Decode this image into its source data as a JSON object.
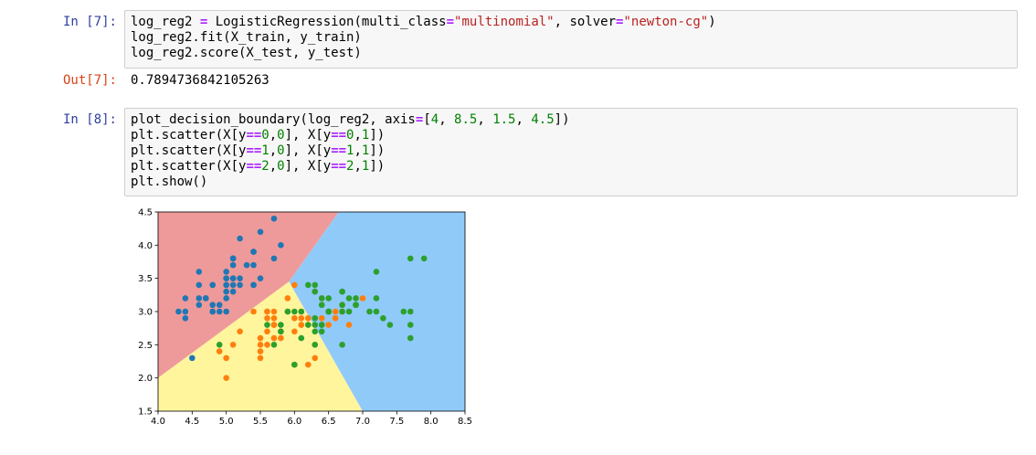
{
  "cells": [
    {
      "prompt": "In [7]:",
      "lines": [
        [
          {
            "t": "log_reg2 "
          },
          {
            "t": "=",
            "c": "op"
          },
          {
            "t": " LogisticRegression(multi_class"
          },
          {
            "t": "=",
            "c": "op"
          },
          {
            "t": "\"multinomial\"",
            "c": "str"
          },
          {
            "t": ", solver"
          },
          {
            "t": "=",
            "c": "op"
          },
          {
            "t": "\"newton-cg\"",
            "c": "str"
          },
          {
            "t": ")"
          }
        ],
        [
          {
            "t": "log_reg2.fit(X_train, y_train)"
          }
        ],
        [
          {
            "t": "log_reg2.score(X_test, y_test)"
          }
        ]
      ]
    },
    {
      "prompt": "In [8]:",
      "lines": [
        [
          {
            "t": "plot_decision_boundary(log_reg2, axis"
          },
          {
            "t": "=",
            "c": "op"
          },
          {
            "t": "["
          },
          {
            "t": "4",
            "c": "num"
          },
          {
            "t": ", "
          },
          {
            "t": "8.5",
            "c": "num"
          },
          {
            "t": ", "
          },
          {
            "t": "1.5",
            "c": "num"
          },
          {
            "t": ", "
          },
          {
            "t": "4.5",
            "c": "num"
          },
          {
            "t": "])"
          }
        ],
        [
          {
            "t": "plt.scatter(X[y"
          },
          {
            "t": "==",
            "c": "op"
          },
          {
            "t": "0",
            "c": "num"
          },
          {
            "t": ","
          },
          {
            "t": "0",
            "c": "num"
          },
          {
            "t": "], X[y"
          },
          {
            "t": "==",
            "c": "op"
          },
          {
            "t": "0",
            "c": "num"
          },
          {
            "t": ","
          },
          {
            "t": "1",
            "c": "num"
          },
          {
            "t": "])"
          }
        ],
        [
          {
            "t": "plt.scatter(X[y"
          },
          {
            "t": "==",
            "c": "op"
          },
          {
            "t": "1",
            "c": "num"
          },
          {
            "t": ","
          },
          {
            "t": "0",
            "c": "num"
          },
          {
            "t": "], X[y"
          },
          {
            "t": "==",
            "c": "op"
          },
          {
            "t": "1",
            "c": "num"
          },
          {
            "t": ","
          },
          {
            "t": "1",
            "c": "num"
          },
          {
            "t": "])"
          }
        ],
        [
          {
            "t": "plt.scatter(X[y"
          },
          {
            "t": "==",
            "c": "op"
          },
          {
            "t": "2",
            "c": "num"
          },
          {
            "t": ","
          },
          {
            "t": "0",
            "c": "num"
          },
          {
            "t": "], X[y"
          },
          {
            "t": "==",
            "c": "op"
          },
          {
            "t": "2",
            "c": "num"
          },
          {
            "t": ","
          },
          {
            "t": "1",
            "c": "num"
          },
          {
            "t": "])"
          }
        ],
        [
          {
            "t": "plt.show()"
          }
        ]
      ]
    }
  ],
  "output": {
    "prompt": "Out[7]:",
    "value": "0.7894736842105263"
  },
  "colors": {
    "in_prompt": "#303f9f",
    "out_prompt": "#d84315",
    "region_0": "#ef9a9a",
    "region_1": "#fff59d",
    "region_2": "#90caf9",
    "class_0": "#1f77b4",
    "class_1": "#ff7f0e",
    "class_2": "#2ca02c"
  },
  "chart_data": {
    "type": "scatter",
    "xlim": [
      4.0,
      8.5
    ],
    "ylim": [
      1.5,
      4.5
    ],
    "xticks": [
      "4.0",
      "4.5",
      "5.0",
      "5.5",
      "6.0",
      "6.5",
      "7.0",
      "7.5",
      "8.0",
      "8.5"
    ],
    "yticks": [
      "1.5",
      "2.0",
      "2.5",
      "3.0",
      "3.5",
      "4.0",
      "4.5"
    ],
    "regions": [
      {
        "class": 0,
        "polygon": [
          [
            4.0,
            2.0
          ],
          [
            5.92,
            3.45
          ],
          [
            6.65,
            4.5
          ],
          [
            4.0,
            4.5
          ]
        ]
      },
      {
        "class": 1,
        "polygon": [
          [
            4.0,
            1.5
          ],
          [
            7.0,
            1.5
          ],
          [
            5.92,
            3.45
          ],
          [
            4.0,
            2.0
          ]
        ]
      },
      {
        "class": 2,
        "polygon": [
          [
            7.0,
            1.5
          ],
          [
            8.5,
            1.5
          ],
          [
            8.5,
            4.5
          ],
          [
            6.65,
            4.5
          ],
          [
            5.92,
            3.45
          ]
        ]
      }
    ],
    "series": [
      {
        "class": 0,
        "points": [
          [
            5.1,
            3.5
          ],
          [
            4.9,
            3.0
          ],
          [
            4.7,
            3.2
          ],
          [
            4.6,
            3.1
          ],
          [
            5.0,
            3.6
          ],
          [
            5.4,
            3.9
          ],
          [
            4.6,
            3.4
          ],
          [
            5.0,
            3.4
          ],
          [
            4.4,
            2.9
          ],
          [
            4.9,
            3.1
          ],
          [
            5.4,
            3.7
          ],
          [
            4.8,
            3.4
          ],
          [
            4.8,
            3.0
          ],
          [
            4.3,
            3.0
          ],
          [
            5.8,
            4.0
          ],
          [
            5.7,
            4.4
          ],
          [
            5.4,
            3.9
          ],
          [
            5.1,
            3.5
          ],
          [
            5.7,
            3.8
          ],
          [
            5.1,
            3.8
          ],
          [
            5.4,
            3.4
          ],
          [
            5.1,
            3.7
          ],
          [
            4.6,
            3.6
          ],
          [
            5.1,
            3.3
          ],
          [
            4.8,
            3.4
          ],
          [
            5.0,
            3.0
          ],
          [
            5.0,
            3.4
          ],
          [
            5.2,
            3.5
          ],
          [
            5.2,
            3.4
          ],
          [
            4.7,
            3.2
          ],
          [
            4.8,
            3.1
          ],
          [
            5.4,
            3.4
          ],
          [
            5.2,
            4.1
          ],
          [
            5.5,
            4.2
          ],
          [
            5.0,
            3.2
          ],
          [
            5.5,
            3.5
          ],
          [
            4.4,
            3.0
          ],
          [
            5.1,
            3.4
          ],
          [
            5.0,
            3.5
          ],
          [
            4.5,
            2.3
          ],
          [
            4.4,
            3.2
          ],
          [
            5.0,
            3.5
          ],
          [
            5.1,
            3.8
          ],
          [
            4.8,
            3.0
          ],
          [
            5.1,
            3.8
          ],
          [
            4.6,
            3.2
          ],
          [
            5.3,
            3.7
          ],
          [
            5.0,
            3.3
          ]
        ]
      },
      {
        "class": 1,
        "points": [
          [
            7.0,
            3.2
          ],
          [
            6.4,
            3.2
          ],
          [
            6.9,
            3.1
          ],
          [
            5.5,
            2.3
          ],
          [
            6.5,
            2.8
          ],
          [
            5.7,
            2.8
          ],
          [
            6.3,
            3.3
          ],
          [
            4.9,
            2.4
          ],
          [
            6.6,
            2.9
          ],
          [
            5.2,
            2.7
          ],
          [
            5.0,
            2.0
          ],
          [
            5.9,
            3.0
          ],
          [
            6.0,
            2.2
          ],
          [
            6.1,
            2.9
          ],
          [
            5.6,
            2.9
          ],
          [
            6.7,
            3.1
          ],
          [
            5.6,
            3.0
          ],
          [
            5.8,
            2.7
          ],
          [
            6.2,
            2.2
          ],
          [
            5.6,
            2.5
          ],
          [
            5.9,
            3.2
          ],
          [
            6.1,
            2.8
          ],
          [
            6.3,
            2.5
          ],
          [
            6.1,
            2.8
          ],
          [
            6.4,
            2.9
          ],
          [
            6.6,
            3.0
          ],
          [
            6.8,
            2.8
          ],
          [
            6.7,
            3.0
          ],
          [
            6.0,
            2.9
          ],
          [
            5.7,
            2.6
          ],
          [
            5.5,
            2.4
          ],
          [
            5.8,
            2.7
          ],
          [
            6.0,
            2.7
          ],
          [
            5.4,
            3.0
          ],
          [
            6.0,
            3.4
          ],
          [
            6.3,
            2.3
          ],
          [
            5.6,
            3.0
          ],
          [
            5.5,
            2.5
          ],
          [
            5.5,
            2.6
          ],
          [
            6.1,
            3.0
          ],
          [
            5.8,
            2.6
          ],
          [
            5.0,
            2.3
          ],
          [
            5.6,
            2.7
          ],
          [
            5.7,
            3.0
          ],
          [
            5.7,
            2.9
          ],
          [
            6.2,
            2.9
          ],
          [
            5.1,
            2.5
          ],
          [
            5.7,
            2.8
          ]
        ]
      },
      {
        "class": 2,
        "points": [
          [
            6.3,
            3.3
          ],
          [
            5.8,
            2.7
          ],
          [
            7.1,
            3.0
          ],
          [
            6.3,
            2.9
          ],
          [
            6.5,
            3.0
          ],
          [
            7.6,
            3.0
          ],
          [
            4.9,
            2.5
          ],
          [
            7.3,
            2.9
          ],
          [
            6.7,
            2.5
          ],
          [
            7.2,
            3.6
          ],
          [
            6.5,
            3.2
          ],
          [
            6.4,
            2.7
          ],
          [
            6.8,
            3.0
          ],
          [
            5.7,
            2.5
          ],
          [
            5.8,
            2.8
          ],
          [
            6.4,
            3.2
          ],
          [
            6.5,
            3.0
          ],
          [
            7.7,
            3.8
          ],
          [
            7.7,
            2.6
          ],
          [
            6.0,
            2.2
          ],
          [
            6.9,
            3.2
          ],
          [
            5.6,
            2.8
          ],
          [
            7.7,
            2.8
          ],
          [
            6.3,
            2.7
          ],
          [
            6.7,
            3.3
          ],
          [
            7.2,
            3.2
          ],
          [
            6.2,
            2.8
          ],
          [
            6.1,
            3.0
          ],
          [
            6.4,
            2.8
          ],
          [
            7.2,
            3.0
          ],
          [
            7.4,
            2.8
          ],
          [
            7.9,
            3.8
          ],
          [
            6.4,
            2.8
          ],
          [
            6.3,
            2.8
          ],
          [
            6.1,
            2.6
          ],
          [
            7.7,
            3.0
          ],
          [
            6.3,
            3.4
          ],
          [
            6.4,
            3.1
          ],
          [
            6.0,
            3.0
          ],
          [
            6.9,
            3.1
          ],
          [
            6.7,
            3.1
          ],
          [
            6.9,
            3.1
          ],
          [
            6.8,
            3.2
          ],
          [
            6.7,
            3.3
          ],
          [
            6.7,
            3.0
          ],
          [
            6.3,
            2.5
          ],
          [
            6.5,
            3.0
          ],
          [
            6.2,
            3.4
          ],
          [
            5.9,
            3.0
          ]
        ]
      }
    ]
  }
}
